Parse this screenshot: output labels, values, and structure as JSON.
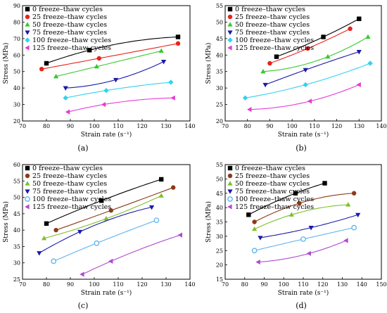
{
  "chart_data": [
    {
      "type": "scatter",
      "panel_label": "(a)",
      "xlabel": "Strain rate (s⁻¹)",
      "ylabel": "Stress (MPa)",
      "xlim": [
        70,
        140
      ],
      "ylim": [
        20,
        90
      ],
      "xticks": [
        70,
        80,
        90,
        100,
        110,
        120,
        130,
        140
      ],
      "yticks": [
        20,
        30,
        40,
        50,
        60,
        70,
        80,
        90
      ],
      "legend_position": "top-left",
      "series": [
        {
          "name": "0 freeze–thaw cycles",
          "color": "#000000",
          "marker": "square",
          "x": [
            80,
            98,
            135
          ],
          "y": [
            55,
            63,
            71
          ]
        },
        {
          "name": "25 freeze–thaw cycles",
          "color": "#e8231c",
          "marker": "circle",
          "x": [
            78,
            102,
            135
          ],
          "y": [
            51.5,
            58,
            67
          ]
        },
        {
          "name": "50 freeze–thaw cycles",
          "color": "#36c92e",
          "marker": "triangle-up",
          "x": [
            84,
            101,
            128
          ],
          "y": [
            47,
            53,
            62.5
          ]
        },
        {
          "name": "75 freeze–thaw cycles",
          "color": "#1a1aa8",
          "marker": "triangle-down",
          "x": [
            88,
            109,
            129
          ],
          "y": [
            40,
            45,
            56
          ]
        },
        {
          "name": "100 freeze–thaw cycles",
          "color": "#32d2ee",
          "marker": "diamond",
          "x": [
            88,
            105,
            132
          ],
          "y": [
            34,
            38.5,
            43.5
          ]
        },
        {
          "name": "125 freeze–thaw cycles",
          "color": "#e83ad4",
          "marker": "triangle-left",
          "x": [
            89,
            104,
            133
          ],
          "y": [
            25.5,
            30,
            34
          ]
        }
      ]
    },
    {
      "type": "scatter",
      "panel_label": "(b)",
      "xlabel": "Strain rate (s⁻¹)",
      "ylabel": "Stress (MPa)",
      "xlim": [
        70,
        140
      ],
      "ylim": [
        20,
        55
      ],
      "xticks": [
        70,
        80,
        90,
        100,
        110,
        120,
        130,
        140
      ],
      "yticks": [
        20,
        25,
        30,
        35,
        40,
        45,
        50,
        55
      ],
      "legend_position": "top-left",
      "series": [
        {
          "name": "0 freeze–thaw cycles",
          "color": "#000000",
          "marker": "square",
          "x": [
            93,
            114,
            130
          ],
          "y": [
            39.5,
            45.5,
            51
          ]
        },
        {
          "name": "25 freeze–thaw cycles",
          "color": "#e8231c",
          "marker": "circle",
          "x": [
            90,
            107,
            126
          ],
          "y": [
            37.5,
            42,
            48
          ]
        },
        {
          "name": "50 freeze–thaw cycles",
          "color": "#36c92e",
          "marker": "triangle-up",
          "x": [
            87,
            116,
            134
          ],
          "y": [
            35,
            39.5,
            45.5
          ]
        },
        {
          "name": "75 freeze–thaw cycles",
          "color": "#1a1aa8",
          "marker": "triangle-down",
          "x": [
            88,
            106,
            130
          ],
          "y": [
            31,
            35.5,
            41
          ]
        },
        {
          "name": "100 freeze–thaw cycles",
          "color": "#32d2ee",
          "marker": "diamond",
          "x": [
            79,
            106,
            135
          ],
          "y": [
            27,
            31,
            37.5
          ]
        },
        {
          "name": "125 freeze–thaw cycles",
          "color": "#e83ad4",
          "marker": "triangle-left",
          "x": [
            81,
            108,
            130
          ],
          "y": [
            23.5,
            26,
            31
          ]
        }
      ]
    },
    {
      "type": "scatter",
      "panel_label": "(c)",
      "xlabel": "Strain rate (s⁻¹)",
      "ylabel": "Stress (MPa)",
      "xlim": [
        70,
        140
      ],
      "ylim": [
        25,
        60
      ],
      "xticks": [
        70,
        80,
        90,
        100,
        110,
        120,
        130,
        140
      ],
      "yticks": [
        25,
        30,
        35,
        40,
        45,
        50,
        55,
        60
      ],
      "legend_position": "top-left",
      "series": [
        {
          "name": "0 freeze–thaw cycles",
          "color": "#000000",
          "marker": "square",
          "x": [
            80,
            103,
            128
          ],
          "y": [
            42,
            49,
            55.5
          ]
        },
        {
          "name": "25 freeze–thaw cycles",
          "color": "#8b3a1a",
          "marker": "circle",
          "x": [
            84,
            107,
            133
          ],
          "y": [
            40,
            46,
            53
          ]
        },
        {
          "name": "50 freeze–thaw cycles",
          "color": "#7fbf2a",
          "marker": "triangle-up",
          "x": [
            79,
            105,
            128
          ],
          "y": [
            37.5,
            43.5,
            50.5
          ]
        },
        {
          "name": "75 freeze–thaw cycles",
          "color": "#1a1aa8",
          "marker": "triangle-down",
          "x": [
            77,
            94,
            124
          ],
          "y": [
            33,
            39.5,
            47
          ]
        },
        {
          "name": "100 freeze–thaw cycles",
          "color": "#5ab4f0",
          "marker": "circle-open",
          "x": [
            83,
            101,
            126
          ],
          "y": [
            30.5,
            36,
            43
          ]
        },
        {
          "name": "125 freeze–thaw cycles",
          "color": "#b04ad0",
          "marker": "triangle-left",
          "x": [
            95,
            107,
            136
          ],
          "y": [
            26.5,
            30.5,
            38.5
          ]
        }
      ]
    },
    {
      "type": "scatter",
      "panel_label": "(d)",
      "xlabel": "Strain rate (s⁻¹)",
      "ylabel": "Stress (MPa)",
      "xlim": [
        70,
        150
      ],
      "ylim": [
        15,
        55
      ],
      "xticks": [
        70,
        80,
        90,
        100,
        110,
        120,
        130,
        140,
        150
      ],
      "yticks": [
        15,
        20,
        25,
        30,
        35,
        40,
        45,
        50,
        55
      ],
      "legend_position": "top-left",
      "series": [
        {
          "name": "0 freeze–thaw cycles",
          "color": "#000000",
          "marker": "square",
          "x": [
            82,
            106,
            121
          ],
          "y": [
            37.5,
            45,
            48.5
          ]
        },
        {
          "name": "25 freeze–thaw cycles",
          "color": "#8b3a1a",
          "marker": "circle",
          "x": [
            85,
            108,
            136
          ],
          "y": [
            35,
            41.5,
            45
          ]
        },
        {
          "name": "50 freeze–thaw cycles",
          "color": "#7fbf2a",
          "marker": "triangle-up",
          "x": [
            85,
            104,
            133
          ],
          "y": [
            32.5,
            37.5,
            41
          ]
        },
        {
          "name": "75 freeze–thaw cycles",
          "color": "#1a1aa8",
          "marker": "triangle-down",
          "x": [
            88,
            114,
            138
          ],
          "y": [
            29.5,
            33,
            37.5
          ]
        },
        {
          "name": "100 freeze–thaw cycles",
          "color": "#5ab4f0",
          "marker": "circle-open",
          "x": [
            85,
            110,
            136
          ],
          "y": [
            25,
            29,
            33
          ]
        },
        {
          "name": "125 freeze–thaw cycles",
          "color": "#b04ad0",
          "marker": "triangle-left",
          "x": [
            87,
            113,
            132
          ],
          "y": [
            21,
            24,
            28.5
          ]
        }
      ]
    }
  ]
}
